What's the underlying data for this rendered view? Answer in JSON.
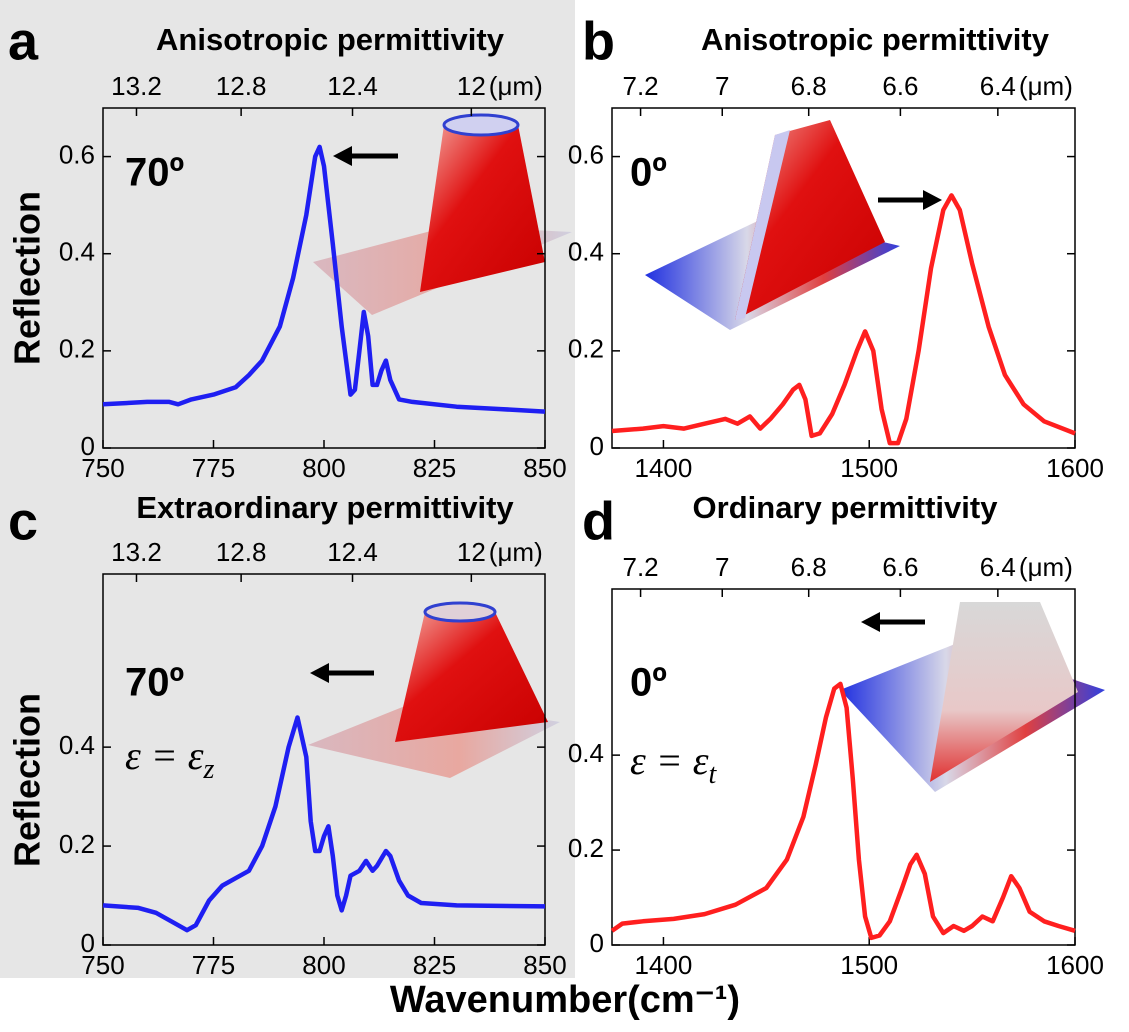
{
  "chart_data": [
    {
      "type": "line",
      "panel": "a",
      "title": "Anisotropic permittivity",
      "ylabel": "Reflection",
      "angle_label": "70º",
      "color": "#1f1ff2",
      "x": [
        750,
        760,
        765,
        767,
        770,
        775,
        780,
        783,
        786,
        790,
        793,
        796,
        798,
        799,
        800,
        802,
        804,
        806,
        807,
        808,
        809,
        810,
        811,
        812,
        813,
        814,
        815,
        817,
        820,
        830,
        840,
        850
      ],
      "values": [
        0.09,
        0.095,
        0.095,
        0.09,
        0.1,
        0.11,
        0.125,
        0.15,
        0.18,
        0.25,
        0.35,
        0.48,
        0.6,
        0.62,
        0.58,
        0.42,
        0.25,
        0.11,
        0.12,
        0.2,
        0.28,
        0.23,
        0.13,
        0.13,
        0.16,
        0.18,
        0.14,
        0.1,
        0.095,
        0.085,
        0.08,
        0.075
      ],
      "xlim": [
        750,
        850
      ],
      "ylim": [
        0,
        0.7
      ],
      "xticks": [
        750,
        775,
        800,
        825,
        850
      ],
      "yticks": [
        0,
        0.2,
        0.4,
        0.6
      ],
      "x2ticks": [
        13.2,
        12.8,
        12.4,
        12
      ],
      "x2unit": "(μm)"
    },
    {
      "type": "line",
      "panel": "b",
      "title": "Anisotropic permittivity",
      "angle_label": "0º",
      "color": "#ff1f1f",
      "x": [
        1375,
        1390,
        1400,
        1410,
        1420,
        1425,
        1430,
        1436,
        1442,
        1447,
        1452,
        1458,
        1463,
        1466,
        1469,
        1472,
        1476,
        1482,
        1488,
        1494,
        1498,
        1502,
        1506,
        1510,
        1514,
        1518,
        1524,
        1530,
        1536,
        1540,
        1544,
        1550,
        1558,
        1566,
        1575,
        1585,
        1600
      ],
      "values": [
        0.035,
        0.04,
        0.045,
        0.04,
        0.05,
        0.055,
        0.06,
        0.05,
        0.065,
        0.04,
        0.06,
        0.09,
        0.12,
        0.13,
        0.1,
        0.025,
        0.03,
        0.07,
        0.13,
        0.2,
        0.24,
        0.2,
        0.08,
        0.01,
        0.01,
        0.06,
        0.2,
        0.37,
        0.49,
        0.52,
        0.49,
        0.38,
        0.25,
        0.15,
        0.09,
        0.055,
        0.03
      ],
      "xlim": [
        1375,
        1600
      ],
      "ylim": [
        0,
        0.7
      ],
      "xticks": [
        1400,
        1500,
        1600
      ],
      "yticks": [
        0,
        0.2,
        0.4,
        0.6
      ],
      "x2ticks": [
        7.2,
        7,
        6.8,
        6.6,
        6.4
      ],
      "x2unit": "(μm)"
    },
    {
      "type": "line",
      "panel": "c",
      "title": "Extraordinary permittivity",
      "ylabel": "Reflection",
      "angle_label": "70º",
      "eps_label": "ε = ε",
      "eps_sub": "z",
      "color": "#1f1ff2",
      "x": [
        750,
        758,
        762,
        766,
        769,
        771,
        774,
        777,
        780,
        783,
        786,
        789,
        792,
        794,
        796,
        797,
        798,
        799,
        800,
        801,
        802,
        803,
        804,
        805,
        806,
        808,
        809.5,
        811,
        812,
        814,
        815,
        817,
        819,
        822,
        830,
        850
      ],
      "values": [
        0.08,
        0.075,
        0.065,
        0.045,
        0.03,
        0.04,
        0.09,
        0.12,
        0.135,
        0.15,
        0.2,
        0.28,
        0.4,
        0.46,
        0.38,
        0.25,
        0.19,
        0.19,
        0.22,
        0.24,
        0.18,
        0.1,
        0.07,
        0.1,
        0.14,
        0.15,
        0.17,
        0.15,
        0.16,
        0.19,
        0.18,
        0.13,
        0.1,
        0.085,
        0.08,
        0.078
      ],
      "xlim": [
        750,
        850
      ],
      "ylim": [
        0,
        0.75
      ],
      "xticks": [
        750,
        775,
        800,
        825,
        850
      ],
      "yticks": [
        0,
        0.2,
        0.4
      ],
      "x2ticks": [
        13.2,
        12.8,
        12.4,
        12
      ],
      "x2unit": "(μm)"
    },
    {
      "type": "line",
      "panel": "d",
      "title": "Ordinary permittivity",
      "angle_label": "0º",
      "eps_label": "ε = ε",
      "eps_sub": "t",
      "color": "#ff1f1f",
      "x": [
        1375,
        1380,
        1390,
        1405,
        1420,
        1435,
        1450,
        1460,
        1468,
        1474,
        1479,
        1483,
        1486,
        1489,
        1492,
        1495,
        1498,
        1501,
        1505,
        1510,
        1516,
        1520,
        1523,
        1527,
        1531,
        1536,
        1541,
        1546,
        1550,
        1555,
        1560,
        1565,
        1569,
        1573,
        1578,
        1585,
        1592,
        1600
      ],
      "values": [
        0.03,
        0.045,
        0.05,
        0.055,
        0.065,
        0.085,
        0.12,
        0.18,
        0.27,
        0.38,
        0.48,
        0.54,
        0.55,
        0.5,
        0.35,
        0.18,
        0.06,
        0.015,
        0.02,
        0.05,
        0.12,
        0.17,
        0.19,
        0.15,
        0.06,
        0.025,
        0.04,
        0.03,
        0.04,
        0.06,
        0.05,
        0.1,
        0.145,
        0.12,
        0.07,
        0.05,
        0.04,
        0.03
      ],
      "xlim": [
        1375,
        1600
      ],
      "ylim": [
        0,
        0.75
      ],
      "xticks": [
        1400,
        1500,
        1600
      ],
      "yticks": [
        0,
        0.2,
        0.4
      ],
      "x2ticks": [
        7.2,
        7,
        6.8,
        6.6,
        6.4
      ],
      "x2unit": "(μm)"
    }
  ],
  "xlabel": "Wavenumber(cm⁻¹)"
}
